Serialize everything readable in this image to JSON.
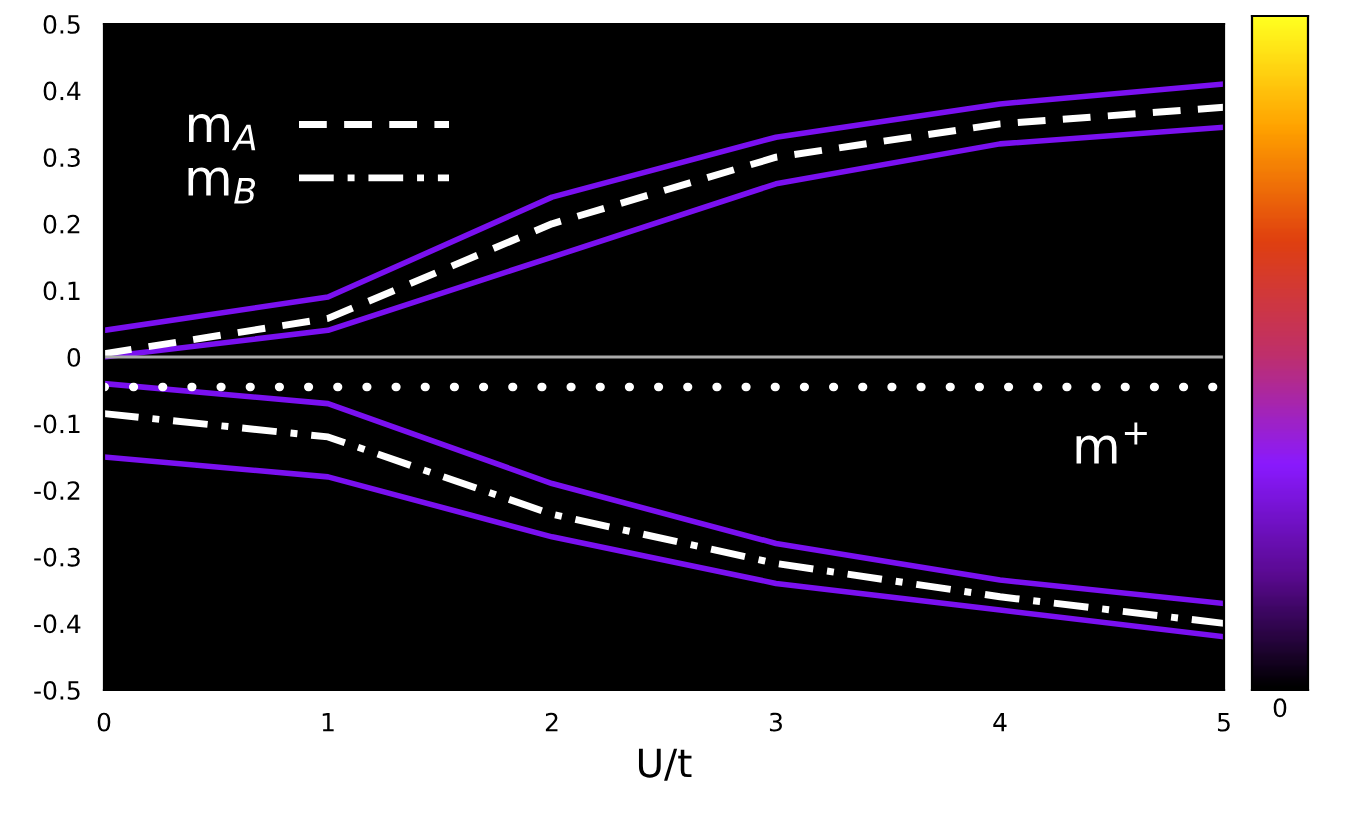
{
  "chart_data": {
    "type": "line",
    "xlabel": "U/t",
    "x": [
      0,
      1,
      2,
      3,
      4,
      5
    ],
    "xlim": [
      0,
      5
    ],
    "xticks": [
      0,
      1,
      2,
      3,
      4,
      5
    ],
    "ylim": [
      -0.5,
      0.5
    ],
    "yticks": [
      -0.5,
      -0.4,
      -0.3,
      -0.2,
      -0.1,
      0,
      0.1,
      0.2,
      0.3,
      0.4,
      0.5
    ],
    "series": [
      {
        "color": "#7a10f0",
        "values": [
          0.04,
          0.09,
          0.24,
          0.33,
          0.38,
          0.41
        ]
      },
      {
        "color": "#7a10f0",
        "values": [
          0.0,
          0.04,
          0.15,
          0.26,
          0.32,
          0.345
        ]
      },
      {
        "color": "#7a10f0",
        "values": [
          -0.04,
          -0.07,
          -0.19,
          -0.28,
          -0.335,
          -0.37
        ]
      },
      {
        "color": "#7a10f0",
        "values": [
          -0.15,
          -0.18,
          -0.27,
          -0.34,
          -0.38,
          -0.42
        ]
      },
      {
        "name": "m$_{A}$",
        "color": "#ffffff",
        "line_style": "dashed",
        "values": [
          0.005,
          0.058,
          0.2,
          0.3,
          0.35,
          0.375
        ]
      },
      {
        "name": "m$_{B}$",
        "color": "#ffffff",
        "line_style": "dashdot",
        "values": [
          -0.085,
          -0.12,
          -0.236,
          -0.31,
          -0.36,
          -0.4
        ]
      },
      {
        "color": "#ffffff",
        "line_style": "dotted",
        "values": [
          -0.045,
          -0.045,
          -0.045,
          -0.045,
          -0.045,
          -0.045
        ]
      }
    ],
    "ref_lines": [
      {
        "axis": "y",
        "value": 0,
        "color": "#aaaaaa"
      }
    ],
    "annotations": [
      "m$^{+}$",
      "0"
    ],
    "legend": "top left",
    "grid": false
  }
}
